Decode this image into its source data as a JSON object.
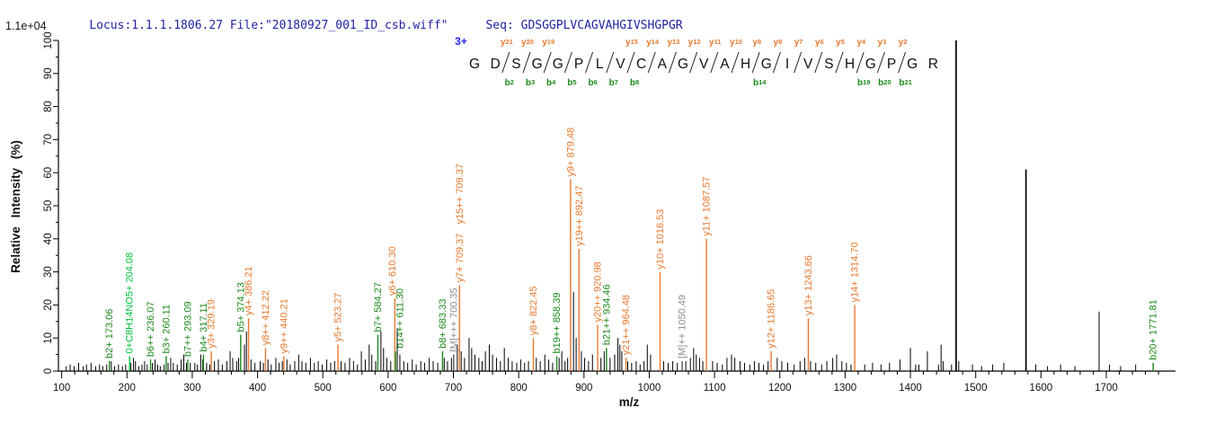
{
  "header": {
    "locus_file": "Locus:1.1.1.1806.27 File:\"20180927_001_ID_csb.wiff\"",
    "seq_label": "Seq:",
    "seq_value": "GDSGGPLVCAGVAHGIVSHGPGR",
    "scale_note": "1.1e+04"
  },
  "colors": {
    "y_ion": "#e8792e",
    "b_ion": "#1c8a1c",
    "special_ion": "#00c23c",
    "precursor_label": "#8c8c8c",
    "precursor_line": "#555555",
    "peak_default": "#000000",
    "header_text": "#2222a6",
    "charge_text": "#2222ee"
  },
  "sequence_annotation": {
    "charge": "3+",
    "residues": [
      "G",
      "D",
      "S",
      "G",
      "G",
      "P",
      "L",
      "V",
      "C",
      "A",
      "G",
      "V",
      "A",
      "H",
      "G",
      "I",
      "V",
      "S",
      "H",
      "G",
      "P",
      "G",
      "R"
    ],
    "cleavages": [
      {
        "after": 2,
        "y": "y21",
        "b": "b2"
      },
      {
        "after": 3,
        "y": "y20",
        "b": "b3"
      },
      {
        "after": 4,
        "y": "y19",
        "b": "b4"
      },
      {
        "after": 5,
        "y": null,
        "b": "b5"
      },
      {
        "after": 6,
        "y": null,
        "b": "b6"
      },
      {
        "after": 7,
        "y": null,
        "b": "b7"
      },
      {
        "after": 8,
        "y": "y15",
        "b": "b8"
      },
      {
        "after": 9,
        "y": "y14",
        "b": null
      },
      {
        "after": 10,
        "y": "y13",
        "b": null
      },
      {
        "after": 11,
        "y": "y12",
        "b": null
      },
      {
        "after": 12,
        "y": "y11",
        "b": null
      },
      {
        "after": 13,
        "y": "y10",
        "b": null
      },
      {
        "after": 14,
        "y": "y9",
        "b": "b14"
      },
      {
        "after": 15,
        "y": "y8",
        "b": null
      },
      {
        "after": 16,
        "y": "y7",
        "b": null
      },
      {
        "after": 17,
        "y": "y6",
        "b": null
      },
      {
        "after": 18,
        "y": "y5",
        "b": null
      },
      {
        "after": 19,
        "y": "y4",
        "b": "b19"
      },
      {
        "after": 20,
        "y": "y3",
        "b": "b20"
      },
      {
        "after": 21,
        "y": "y2",
        "b": "b21"
      }
    ]
  },
  "axes": {
    "x": {
      "label": "m/z",
      "min": 95,
      "max": 1806,
      "major_ticks": [
        100,
        200,
        300,
        400,
        500,
        600,
        700,
        800,
        900,
        1000,
        1100,
        1200,
        1300,
        1400,
        1500,
        1600,
        1700
      ],
      "minor_step": 20
    },
    "y": {
      "label": "Relative  Intensity (%)",
      "min": 0,
      "max": 100,
      "major_ticks": [
        0,
        10,
        20,
        30,
        40,
        50,
        60,
        70,
        80,
        90,
        100
      ],
      "minor_step": 5
    }
  },
  "chart_data": {
    "type": "bar",
    "subtype": "ms2-peptide-fragment-spectrum",
    "xlabel": "m/z",
    "ylabel": "Relative  Intensity (%)",
    "xlim": [
      95,
      1806
    ],
    "ylim": [
      0,
      100
    ],
    "intensity_full_scale": "1.1e+04",
    "labeled_peaks": [
      {
        "label": "b2+ 173.06",
        "ion": "b",
        "mz": 173.06,
        "intensity": 3
      },
      {
        "label": "0+C8H14NO5+ 204.08",
        "ion": "special",
        "mz": 204.08,
        "intensity": 4.5
      },
      {
        "label": "b6++ 236.07",
        "ion": "b",
        "mz": 236.07,
        "intensity": 3.5
      },
      {
        "label": "b3+ 260.11",
        "ion": "b",
        "mz": 260.11,
        "intensity": 4.5
      },
      {
        "label": "b7++ 293.09",
        "ion": "b",
        "mz": 293.09,
        "intensity": 3.5
      },
      {
        "label": "b4+ 317.11",
        "ion": "b",
        "mz": 317.11,
        "intensity": 5
      },
      {
        "label": "y3+ 329.19",
        "ion": "y",
        "mz": 329.19,
        "intensity": 6
      },
      {
        "label": "b5+ 374.13",
        "ion": "b",
        "mz": 374.13,
        "intensity": 11
      },
      {
        "label": "y4+ 386.21",
        "ion": "y",
        "mz": 386.21,
        "intensity": 16
      },
      {
        "label": "y8++ 412.22",
        "ion": "y",
        "mz": 412.22,
        "intensity": 7
      },
      {
        "label": "y9++ 440.21",
        "ion": "y",
        "mz": 440.21,
        "intensity": 4.5
      },
      {
        "label": "y5+ 523.27",
        "ion": "y",
        "mz": 523.27,
        "intensity": 8
      },
      {
        "label": "b7+ 584.27",
        "ion": "b",
        "mz": 584.27,
        "intensity": 11
      },
      {
        "label": "y6+ 610.30",
        "ion": "y",
        "mz": 610.3,
        "intensity": 22,
        "label_dx": -3
      },
      {
        "label": "b14++ 611.30",
        "ion": "b",
        "mz": 611.3,
        "intensity": 6,
        "label_dx": 5
      },
      {
        "label": "b8+ 683.33",
        "ion": "b",
        "mz": 683.33,
        "intensity": 6
      },
      {
        "label": "[M]+++ 700.35",
        "ion": "precursor",
        "mz": 700.35,
        "intensity": 5
      },
      {
        "label": "y7+ 709.37",
        "label2": "y15++ 709.37",
        "ion": "y",
        "mz": 709.37,
        "intensity": 26
      },
      {
        "label": "y8+ 822.45",
        "ion": "y",
        "mz": 822.45,
        "intensity": 10
      },
      {
        "label": "b19++ 858.39",
        "ion": "b",
        "mz": 858.39,
        "intensity": 4.5
      },
      {
        "label": "y9+ 879.48",
        "ion": "y",
        "mz": 879.48,
        "intensity": 58
      },
      {
        "label": "y19++ 892.47",
        "ion": "y",
        "mz": 892.47,
        "intensity": 37
      },
      {
        "label": "y20++ 920.98",
        "ion": "y",
        "mz": 920.98,
        "intensity": 14
      },
      {
        "label": "b21++ 934.46",
        "ion": "b",
        "mz": 934.46,
        "intensity": 7
      },
      {
        "label": "y21++ 964.48",
        "ion": "y",
        "mz": 964.48,
        "intensity": 4
      },
      {
        "label": "y10+ 1016.53",
        "ion": "y",
        "mz": 1016.53,
        "intensity": 30
      },
      {
        "label": "[M]++ 1050.49",
        "ion": "precursor",
        "mz": 1050.49,
        "intensity": 3
      },
      {
        "label": "y11+ 1087.57",
        "ion": "y",
        "mz": 1087.57,
        "intensity": 40
      },
      {
        "label": "y12+ 1186.65",
        "ion": "y",
        "mz": 1186.65,
        "intensity": 6
      },
      {
        "label": "y13+ 1243.66",
        "ion": "y",
        "mz": 1243.66,
        "intensity": 16
      },
      {
        "label": "y14+ 1314.70",
        "ion": "y",
        "mz": 1314.7,
        "intensity": 20
      },
      {
        "label": "b20+ 1771.81",
        "ion": "b",
        "mz": 1771.81,
        "intensity": 2.5
      }
    ],
    "unlabeled_peaks": [
      [
        107,
        1.5
      ],
      [
        113,
        2
      ],
      [
        119,
        1.5
      ],
      [
        126,
        2.5
      ],
      [
        133,
        1.5
      ],
      [
        138,
        2
      ],
      [
        145,
        2.5
      ],
      [
        152,
        1.5
      ],
      [
        158,
        2
      ],
      [
        163,
        1.5
      ],
      [
        169,
        2
      ],
      [
        176,
        3
      ],
      [
        181,
        1.5
      ],
      [
        187,
        2
      ],
      [
        193,
        1.5
      ],
      [
        198,
        2
      ],
      [
        206,
        2.5
      ],
      [
        210,
        4
      ],
      [
        213,
        3
      ],
      [
        218,
        1.5
      ],
      [
        223,
        2
      ],
      [
        227,
        3
      ],
      [
        231,
        2
      ],
      [
        239,
        2.5
      ],
      [
        243,
        3.5
      ],
      [
        247,
        2
      ],
      [
        251,
        1.5
      ],
      [
        257,
        2
      ],
      [
        263,
        2.5
      ],
      [
        267,
        4
      ],
      [
        271,
        2.5
      ],
      [
        277,
        2
      ],
      [
        283,
        3.5
      ],
      [
        287,
        5
      ],
      [
        291,
        2.5
      ],
      [
        297,
        2.5
      ],
      [
        304,
        2.5
      ],
      [
        308,
        2
      ],
      [
        313,
        5
      ],
      [
        316,
        3.5
      ],
      [
        322,
        2.5
      ],
      [
        327,
        2
      ],
      [
        334,
        3
      ],
      [
        340,
        3.5
      ],
      [
        346,
        2
      ],
      [
        353,
        3
      ],
      [
        358,
        6
      ],
      [
        362,
        4
      ],
      [
        368,
        3
      ],
      [
        371,
        4
      ],
      [
        380,
        8
      ],
      [
        383,
        12
      ],
      [
        390,
        3.5
      ],
      [
        396,
        2.5
      ],
      [
        404,
        3
      ],
      [
        409,
        2.5
      ],
      [
        416,
        3.5
      ],
      [
        421,
        2
      ],
      [
        428,
        4
      ],
      [
        433,
        2.5
      ],
      [
        438,
        3
      ],
      [
        445,
        3.5
      ],
      [
        450,
        2
      ],
      [
        457,
        3
      ],
      [
        463,
        5
      ],
      [
        468,
        3
      ],
      [
        474,
        2.5
      ],
      [
        481,
        4
      ],
      [
        487,
        2.5
      ],
      [
        493,
        3
      ],
      [
        499,
        2
      ],
      [
        506,
        3.5
      ],
      [
        512,
        2.5
      ],
      [
        518,
        3
      ],
      [
        528,
        3
      ],
      [
        534,
        2.5
      ],
      [
        541,
        4
      ],
      [
        547,
        3
      ],
      [
        553,
        2
      ],
      [
        559,
        6
      ],
      [
        565,
        3.5
      ],
      [
        571,
        8
      ],
      [
        575,
        5
      ],
      [
        581,
        3
      ],
      [
        589,
        12
      ],
      [
        593,
        7
      ],
      [
        598,
        4
      ],
      [
        604,
        3
      ],
      [
        614,
        13
      ],
      [
        618,
        5
      ],
      [
        624,
        3
      ],
      [
        630,
        2.5
      ],
      [
        637,
        3.5
      ],
      [
        643,
        2
      ],
      [
        650,
        3
      ],
      [
        656,
        2.5
      ],
      [
        663,
        4
      ],
      [
        669,
        3
      ],
      [
        676,
        2.5
      ],
      [
        686,
        4
      ],
      [
        691,
        3
      ],
      [
        697,
        4
      ],
      [
        706,
        8
      ],
      [
        712,
        6
      ],
      [
        717,
        4
      ],
      [
        724,
        10
      ],
      [
        728,
        7
      ],
      [
        733,
        5
      ],
      [
        739,
        4
      ],
      [
        744,
        3
      ],
      [
        749,
        6
      ],
      [
        755,
        8
      ],
      [
        760,
        5
      ],
      [
        766,
        4
      ],
      [
        772,
        3
      ],
      [
        778,
        7
      ],
      [
        784,
        4
      ],
      [
        790,
        3
      ],
      [
        797,
        2.5
      ],
      [
        803,
        3.5
      ],
      [
        809,
        2.5
      ],
      [
        815,
        3
      ],
      [
        827,
        4
      ],
      [
        833,
        3
      ],
      [
        840,
        5
      ],
      [
        846,
        3.5
      ],
      [
        852,
        2.5
      ],
      [
        862,
        4
      ],
      [
        866,
        6
      ],
      [
        871,
        3
      ],
      [
        875,
        4
      ],
      [
        884,
        24
      ],
      [
        888,
        10
      ],
      [
        896,
        6
      ],
      [
        901,
        4
      ],
      [
        907,
        3
      ],
      [
        913,
        5
      ],
      [
        926,
        4
      ],
      [
        931,
        6
      ],
      [
        940,
        4
      ],
      [
        947,
        5
      ],
      [
        952,
        10
      ],
      [
        955,
        8
      ],
      [
        958,
        6
      ],
      [
        967,
        3
      ],
      [
        973,
        2.5
      ],
      [
        980,
        3
      ],
      [
        986,
        2
      ],
      [
        992,
        3
      ],
      [
        997,
        8
      ],
      [
        1002,
        5
      ],
      [
        1022,
        3
      ],
      [
        1029,
        2.5
      ],
      [
        1036,
        3
      ],
      [
        1043,
        2.5
      ],
      [
        1056,
        3
      ],
      [
        1063,
        4
      ],
      [
        1068,
        7
      ],
      [
        1072,
        5
      ],
      [
        1077,
        4
      ],
      [
        1082,
        3
      ],
      [
        1097,
        3
      ],
      [
        1104,
        2.5
      ],
      [
        1112,
        2
      ],
      [
        1119,
        4
      ],
      [
        1126,
        5
      ],
      [
        1131,
        4
      ],
      [
        1139,
        3
      ],
      [
        1146,
        2.5
      ],
      [
        1154,
        2
      ],
      [
        1161,
        3
      ],
      [
        1168,
        2.5
      ],
      [
        1175,
        2
      ],
      [
        1182,
        3
      ],
      [
        1196,
        4
      ],
      [
        1203,
        3
      ],
      [
        1212,
        2.5
      ],
      [
        1222,
        2
      ],
      [
        1231,
        3
      ],
      [
        1238,
        4
      ],
      [
        1247,
        3
      ],
      [
        1255,
        2.5
      ],
      [
        1264,
        2
      ],
      [
        1272,
        3
      ],
      [
        1281,
        4
      ],
      [
        1287,
        5
      ],
      [
        1295,
        3
      ],
      [
        1302,
        2.5
      ],
      [
        1309,
        2
      ],
      [
        1330,
        2
      ],
      [
        1342,
        2.5
      ],
      [
        1355,
        2
      ],
      [
        1368,
        2.5
      ],
      [
        1384,
        3.5
      ],
      [
        1400,
        7
      ],
      [
        1408,
        2
      ],
      [
        1413,
        2
      ],
      [
        1426,
        6
      ],
      [
        1443,
        2
      ],
      [
        1447,
        8
      ],
      [
        1450,
        3
      ],
      [
        1463,
        2
      ],
      [
        1470,
        100
      ],
      [
        1474,
        3
      ],
      [
        1495,
        2
      ],
      [
        1509,
        1.5
      ],
      [
        1526,
        2
      ],
      [
        1543,
        2.5
      ],
      [
        1577,
        61
      ],
      [
        1592,
        2
      ],
      [
        1610,
        1.5
      ],
      [
        1630,
        2
      ],
      [
        1652,
        1.5
      ],
      [
        1689,
        18
      ],
      [
        1705,
        2
      ],
      [
        1722,
        1.5
      ],
      [
        1745,
        2
      ]
    ]
  }
}
